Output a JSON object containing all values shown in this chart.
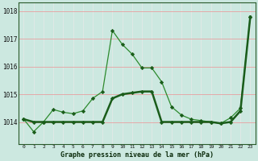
{
  "title": "Graphe pression niveau de la mer (hPa)",
  "background_color": "#cce8e0",
  "line_color_dark": "#1a5c1a",
  "line_color_light": "#2d8a2d",
  "grid_color_v": "#e8e8e8",
  "grid_color_h": "#e8a0a0",
  "xlim": [
    -0.5,
    23.5
  ],
  "ylim": [
    1013.2,
    1018.3
  ],
  "ytick_vals": [
    1014,
    1015,
    1016,
    1017,
    1018
  ],
  "ytick_labels": [
    "1014",
    "1015",
    "1016",
    "1017",
    "1018"
  ],
  "xtick_vals": [
    0,
    1,
    2,
    3,
    4,
    5,
    6,
    7,
    8,
    9,
    10,
    11,
    12,
    13,
    14,
    15,
    16,
    17,
    18,
    19,
    20,
    21,
    22,
    23
  ],
  "xtick_labels": [
    "0",
    "1",
    "2",
    "3",
    "4",
    "5",
    "6",
    "7",
    "8",
    "9",
    "10",
    "11",
    "12",
    "13",
    "14",
    "15",
    "16",
    "17",
    "18",
    "19",
    "20",
    "21",
    "22",
    "23"
  ],
  "series_jagged_x": [
    0,
    1,
    2,
    3,
    4,
    5,
    6,
    7,
    8,
    9,
    10,
    11,
    12,
    13,
    14,
    15,
    16,
    17,
    18,
    19,
    20,
    21,
    22,
    23
  ],
  "series_jagged_y": [
    1014.1,
    1013.65,
    1014.0,
    1014.45,
    1014.35,
    1014.3,
    1014.4,
    1014.85,
    1015.1,
    1017.3,
    1016.8,
    1016.45,
    1015.95,
    1015.95,
    1015.45,
    1014.55,
    1014.25,
    1014.1,
    1014.05,
    1014.0,
    1013.95,
    1014.15,
    1014.5,
    1017.8
  ],
  "series_smooth_x": [
    0,
    1,
    2,
    3,
    4,
    5,
    6,
    7,
    8,
    9,
    10,
    11,
    12,
    13,
    14,
    15,
    16,
    17,
    18,
    19,
    20,
    21,
    22,
    23
  ],
  "series_smooth_y": [
    1014.1,
    1014.0,
    1014.0,
    1014.0,
    1014.0,
    1014.0,
    1014.0,
    1014.0,
    1014.0,
    1014.85,
    1015.0,
    1015.05,
    1015.1,
    1015.1,
    1014.0,
    1014.0,
    1014.0,
    1014.0,
    1014.0,
    1014.0,
    1013.95,
    1014.0,
    1014.4,
    1017.8
  ]
}
